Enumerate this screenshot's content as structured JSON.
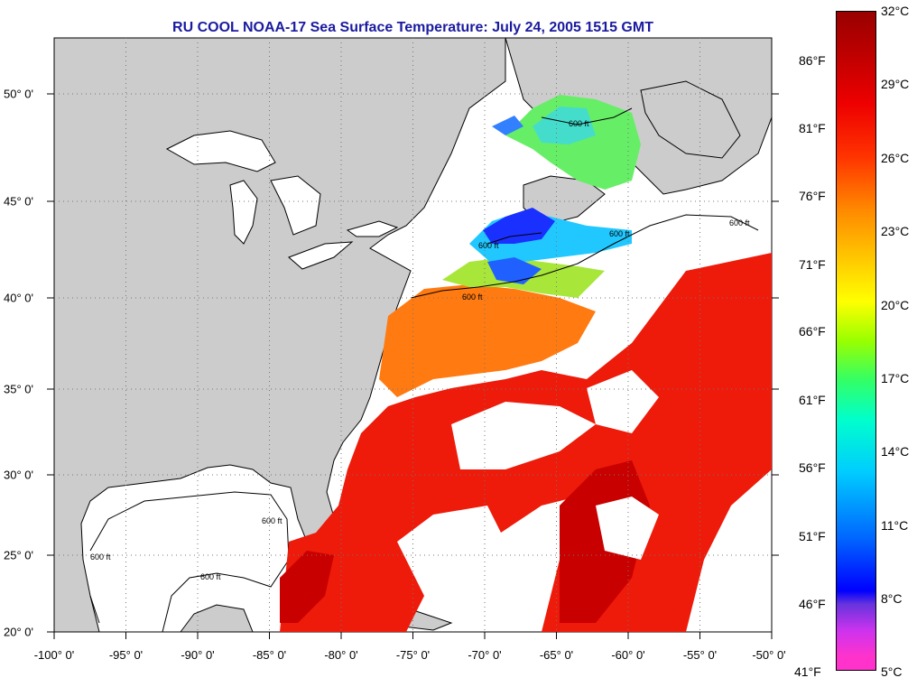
{
  "title": "RU COOL  NOAA-17  Sea Surface Temperature:  July 24, 2005 1515 GMT",
  "map": {
    "longitude_labels": [
      "-100° 0'",
      "-95° 0'",
      "-90° 0'",
      "-85° 0'",
      "-80° 0'",
      "-75° 0'",
      "-70° 0'",
      "-65° 0'",
      "-60° 0'",
      "-55° 0'",
      "-50° 0'"
    ],
    "latitude_labels": [
      "50° 0'",
      "45° 0'",
      "40° 0'",
      "35° 0'",
      "30° 0'",
      "25° 0'",
      "20° 0'"
    ],
    "longitude_range": [
      -100,
      -50
    ],
    "latitude_range": [
      20,
      52
    ],
    "contour_label": "600 ft",
    "land_color": "#cccccc",
    "cloud_color": "#ffffff"
  },
  "colorbar": {
    "fahrenheit_labels": [
      "86°F",
      "81°F",
      "76°F",
      "71°F",
      "66°F",
      "61°F",
      "56°F",
      "51°F",
      "46°F",
      "41°F"
    ],
    "celsius_labels": [
      "32°C",
      "29°C",
      "26°C",
      "23°C",
      "20°C",
      "17°C",
      "14°C",
      "11°C",
      "8°C",
      "5°C"
    ]
  }
}
